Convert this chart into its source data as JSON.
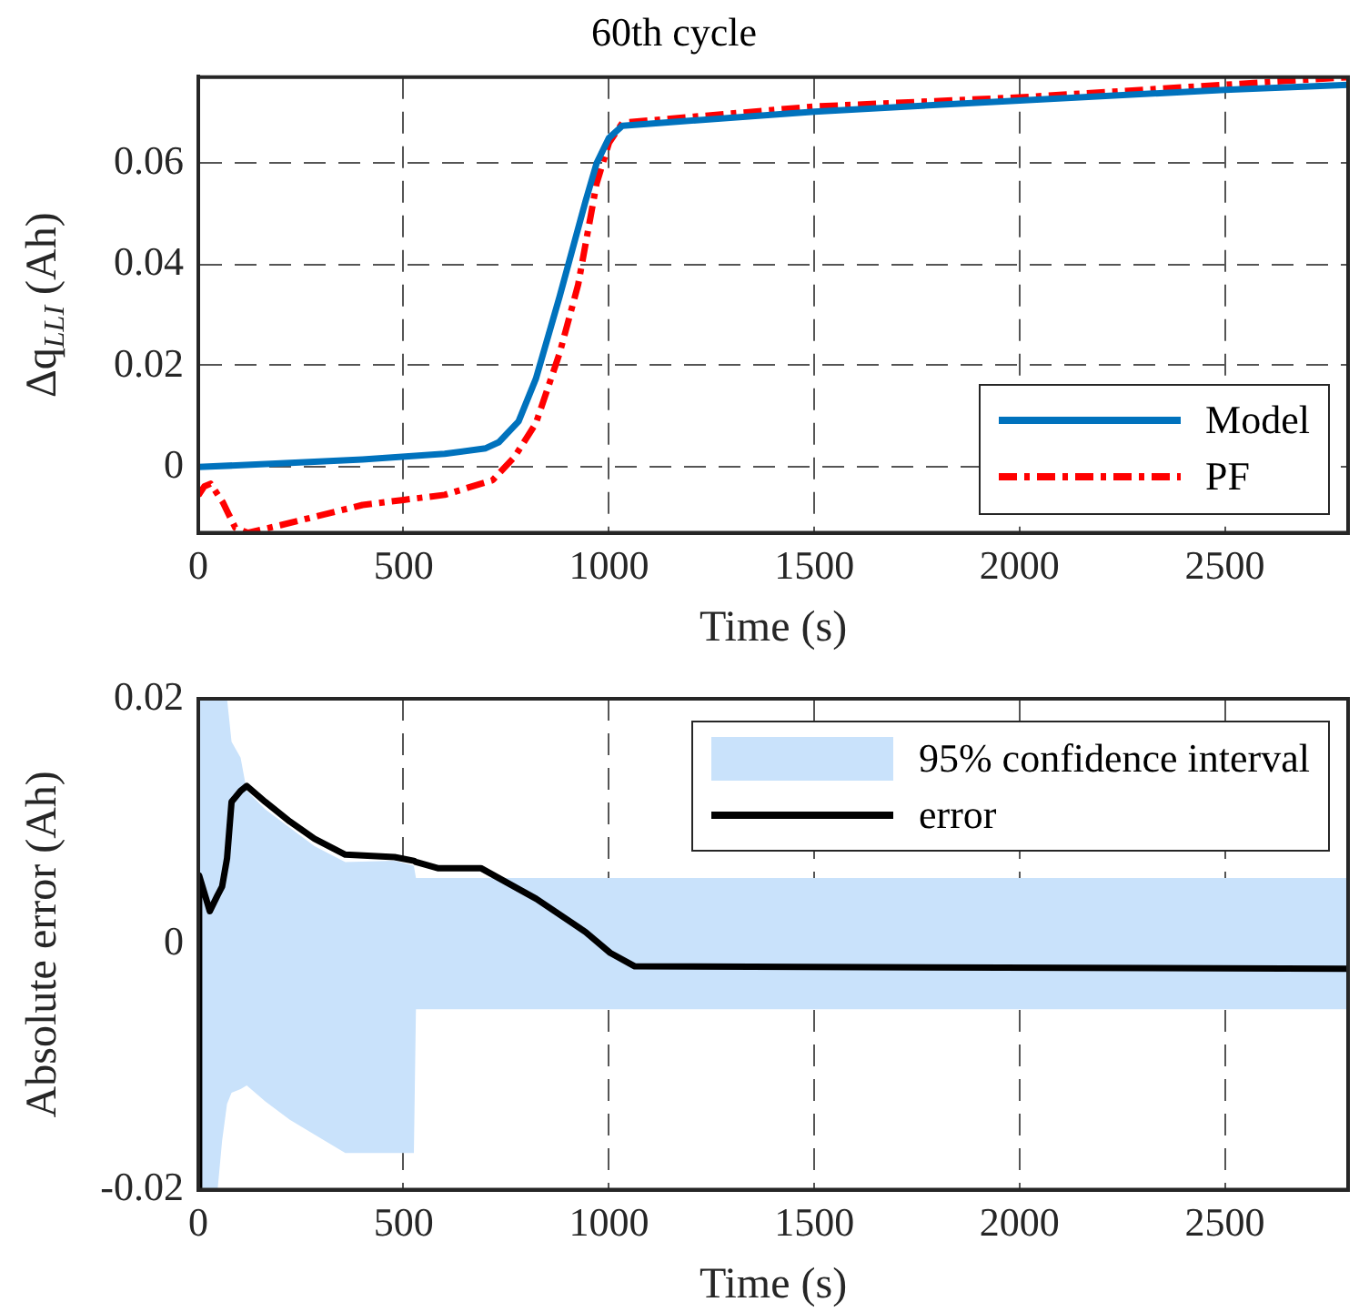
{
  "chart_data": [
    {
      "type": "line",
      "title": "60th cycle",
      "xlabel": "Time (s)",
      "ylabel": "Δq$_{LLI}$ (Ah)",
      "xlim": [
        0,
        2800
      ],
      "xticks": [
        0,
        500,
        1000,
        1500,
        2000,
        2500
      ],
      "ylim": [
        -0.013,
        0.077
      ],
      "yticks": [
        0,
        0.02,
        0.04,
        0.06
      ],
      "grid": true,
      "legend": "bottom right",
      "series": [
        {
          "name": "Model",
          "color": "#0072bd",
          "line_style": "solid",
          "x": [
            0,
            200,
            400,
            600,
            700,
            732,
            780,
            822,
            880,
            943,
            970,
            1000,
            1033,
            1500,
            2000,
            2500,
            2800
          ],
          "values": [
            0,
            0.0007,
            0.0015,
            0.0026,
            0.0037,
            0.0049,
            0.009,
            0.0174,
            0.0337,
            0.0525,
            0.06,
            0.065,
            0.0674,
            0.0702,
            0.0724,
            0.0745,
            0.0755
          ]
        },
        {
          "name": "PF",
          "color": "#ff0000",
          "line_style": "dashdot",
          "x": [
            0,
            15,
            30,
            60,
            90,
            120,
            200,
            300,
            400,
            500,
            600,
            717,
            770,
            822,
            880,
            925,
            970,
            1000,
            1033,
            1500,
            2000,
            2500,
            2800
          ],
          "values": [
            -0.0056,
            -0.0038,
            -0.0033,
            -0.007,
            -0.012,
            -0.013,
            -0.0115,
            -0.0095,
            -0.0075,
            -0.0065,
            -0.0055,
            -0.0026,
            0.002,
            0.0086,
            0.0225,
            0.036,
            0.056,
            0.064,
            0.068,
            0.0712,
            0.073,
            0.0755,
            0.077
          ]
        }
      ]
    },
    {
      "type": "line",
      "xlabel": "Time (s)",
      "ylabel": "Absolute error (Ah)",
      "xlim": [
        0,
        2800
      ],
      "xticks": [
        0,
        500,
        1000,
        1500,
        2000,
        2500
      ],
      "ylim": [
        -0.02,
        0.02
      ],
      "yticks": [
        -0.02,
        0,
        0.02
      ],
      "grid": true,
      "legend": "top right",
      "annotations": [
        "95% confidence interval"
      ],
      "series": [
        {
          "name": "error",
          "color": "#000000",
          "line_style": "solid",
          "x": [
            0,
            2,
            28,
            47,
            58,
            70,
            81,
            103,
            118,
            163,
            223,
            283,
            358,
            478,
            525,
            530,
            583,
            688,
            823,
            943,
            1003,
            1063,
            2800
          ],
          "values": [
            -0.02,
            0.0056,
            0.0027,
            0.004,
            0.0047,
            0.007,
            0.0116,
            0.0125,
            0.0129,
            0.0116,
            0.01,
            0.0086,
            0.0073,
            0.0071,
            0.0068,
            0.0067,
            0.0062,
            0.0062,
            0.0037,
            0.001,
            -0.0007,
            -0.0018,
            -0.002
          ],
          "upper": [
            0.02,
            0.02,
            0.02,
            0.02,
            0.02,
            0.02,
            0.0165,
            0.0152,
            0.0125,
            0.011,
            0.0095,
            0.008,
            0.0067,
            0.0068,
            0.0064,
            0.0054,
            0.0054,
            0.0054,
            0.0054,
            0.0054,
            0.0054,
            0.0054,
            0.0054
          ],
          "lower": [
            -0.02,
            -0.02,
            -0.02,
            -0.02,
            -0.016,
            -0.013,
            -0.0121,
            -0.0118,
            -0.0115,
            -0.0128,
            -0.0143,
            -0.0155,
            -0.017,
            -0.017,
            -0.017,
            -0.0053,
            -0.0053,
            -0.0053,
            -0.0053,
            -0.0053,
            -0.0053,
            -0.0053,
            -0.0053
          ]
        }
      ]
    }
  ]
}
